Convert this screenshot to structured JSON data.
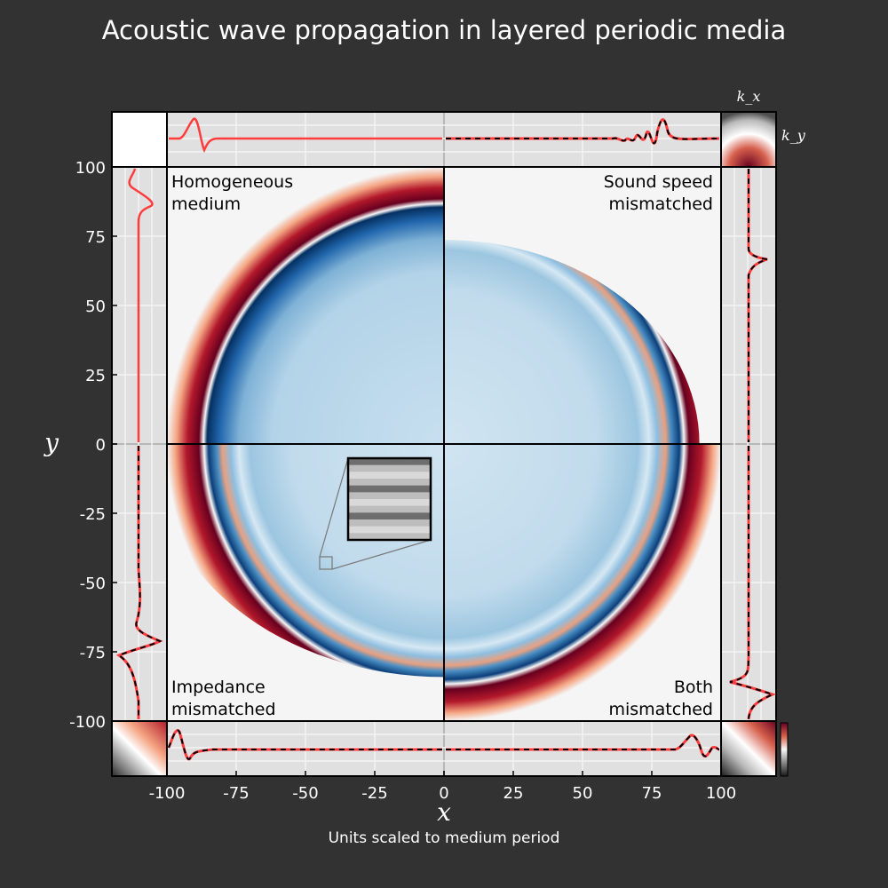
{
  "colors": {
    "background": "#323232",
    "trace_red": "#ff3b3b",
    "trace_black": "#000000",
    "wave_dark_red": "#67001f",
    "wave_blue": "#08306b",
    "interior_blue": "#c6dbef",
    "panel_white": "#f5f5f5",
    "margin_grey": "#e0e0e0"
  },
  "chart_data": {
    "type": "heatmap",
    "title": "Acoustic wave propagation in layered periodic media",
    "xlabel": "x",
    "ylabel": "y",
    "caption": "Units scaled to medium period",
    "xlim": [
      -100,
      100
    ],
    "ylim": [
      -100,
      100
    ],
    "x_ticks": [
      -100,
      -75,
      -50,
      -25,
      0,
      25,
      50,
      75,
      100
    ],
    "y_ticks": [
      100,
      75,
      50,
      25,
      0,
      -25,
      -50,
      -75,
      -100
    ],
    "x_tick_labels": [
      "-100",
      "-75",
      "-50",
      "-25",
      "0",
      "25",
      "50",
      "75",
      "100"
    ],
    "y_tick_labels": [
      "100",
      "75",
      "50",
      "25",
      "0",
      "-25",
      "-50",
      "-75",
      "-100"
    ],
    "quadrants": [
      {
        "id": "q-tl",
        "label": [
          "Homogeneous",
          "medium"
        ],
        "x_range": [
          -100,
          0
        ],
        "y_range": [
          0,
          100
        ],
        "wavefront_radius_x": 87,
        "wavefront_radius_y": 87,
        "ripples": false
      },
      {
        "id": "q-tr",
        "label": [
          "Sound speed",
          "mismatched"
        ],
        "x_range": [
          0,
          100
        ],
        "y_range": [
          0,
          100
        ],
        "wavefront_radius_x": 80,
        "wavefront_radius_y": 64,
        "ripples": true
      },
      {
        "id": "q-bl",
        "label": [
          "Impedance",
          "mismatched"
        ],
        "x_range": [
          -100,
          0
        ],
        "y_range": [
          -100,
          0
        ],
        "wavefront_radius_x": 92,
        "wavefront_radius_y": 73,
        "ripples": true
      },
      {
        "id": "q-br",
        "label": [
          "Both",
          "mismatched"
        ],
        "x_range": [
          0,
          100
        ],
        "y_range": [
          -100,
          0
        ],
        "wavefront_radius_x": 87,
        "wavefront_radius_y": 87,
        "ripples": true
      }
    ],
    "dispersion_labels": [
      "k_x",
      "k_y"
    ],
    "inset": {
      "description": "layered medium zoom",
      "center_x": -43,
      "center_y": -43
    }
  }
}
